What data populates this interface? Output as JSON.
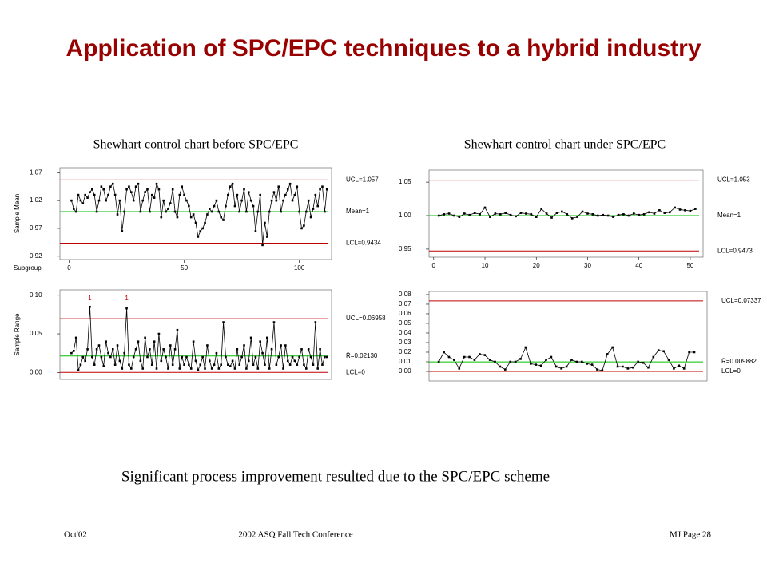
{
  "title": "Application of SPC/EPC techniques to a hybrid industry",
  "subtitles": [
    "Shewhart control chart before SPC/EPC",
    "Shewhart control chart under SPC/EPC"
  ],
  "caption": "Significant process improvement resulted due to the SPC/EPC scheme",
  "footer": {
    "left": "Oct'02",
    "center": "2002 ASQ Fall Tech Conference",
    "right": "MJ   Page 28"
  },
  "chart_data": [
    {
      "type": "line",
      "ylabel": "Sample Mean",
      "xlabel": "Subgroup",
      "x": [
        1,
        2,
        3,
        4,
        5,
        6,
        7,
        8,
        9,
        10,
        11,
        12,
        13,
        14,
        15,
        16,
        17,
        18,
        19,
        20,
        21,
        22,
        23,
        24,
        25,
        26,
        27,
        28,
        29,
        30,
        31,
        32,
        33,
        34,
        35,
        36,
        37,
        38,
        39,
        40,
        41,
        42,
        43,
        44,
        45,
        46,
        47,
        48,
        49,
        50,
        51,
        52,
        53,
        54,
        55,
        56,
        57,
        58,
        59,
        60,
        61,
        62,
        63,
        64,
        65,
        66,
        67,
        68,
        69,
        70,
        71,
        72,
        73,
        74,
        75,
        76,
        77,
        78,
        79,
        80,
        81,
        82,
        83,
        84,
        85,
        86,
        87,
        88,
        89,
        90,
        91,
        92,
        93,
        94,
        95,
        96,
        97,
        98,
        99,
        100,
        101,
        102,
        103,
        104,
        105,
        106,
        107,
        108,
        109,
        110,
        111,
        112
      ],
      "values": [
        1.02,
        1.005,
        1.0,
        1.03,
        1.02,
        1.015,
        1.03,
        1.025,
        1.035,
        1.04,
        1.03,
        1.0,
        1.02,
        1.045,
        1.04,
        1.02,
        1.03,
        1.045,
        1.05,
        1.03,
        0.995,
        1.02,
        0.965,
        1.0,
        1.04,
        1.045,
        1.035,
        1.02,
        1.045,
        1.05,
        1.0,
        1.02,
        1.035,
        1.04,
        1.0,
        1.03,
        1.025,
        1.05,
        1.04,
        0.99,
        1.02,
        1.0,
        1.005,
        1.015,
        1.04,
        1.0,
        0.99,
        1.03,
        1.045,
        1.03,
        1.02,
        1.01,
        0.99,
        0.995,
        0.98,
        0.955,
        0.965,
        0.97,
        0.98,
        0.995,
        1.005,
        1.0,
        1.01,
        1.02,
        1.0,
        0.99,
        0.985,
        1.01,
        1.03,
        1.045,
        1.05,
        1.01,
        1.03,
        1.0,
        1.02,
        1.04,
        1.0,
        1.035,
        1.02,
        1.01,
        0.965,
        1.0,
        1.03,
        0.94,
        0.98,
        0.955,
        1.0,
        1.02,
        1.035,
        1.02,
        1.045,
        1.0,
        1.02,
        1.03,
        1.04,
        1.05,
        1.02,
        1.03,
        1.045,
        1.0,
        0.97,
        0.975,
        1.0,
        1.02,
        0.99,
        1.005,
        1.03,
        1.01,
        1.04,
        1.045,
        1.0,
        1.04
      ],
      "xlim": [
        -4,
        114
      ],
      "xticks": [
        0,
        50,
        100
      ],
      "ylim": [
        0.914,
        1.079
      ],
      "yticks": [
        1.07,
        1.02,
        0.97,
        0.92
      ],
      "limits": [
        {
          "label": "UCL=1.057",
          "value": 1.057,
          "color": "#c00000"
        },
        {
          "label": "Mean=1",
          "value": 1,
          "color": "#00c000"
        },
        {
          "label": "LCL=0.9434",
          "value": 0.9434,
          "color": "#c00000"
        }
      ]
    },
    {
      "type": "line",
      "ylabel": "Sample Range",
      "x": [
        1,
        2,
        3,
        4,
        5,
        6,
        7,
        8,
        9,
        10,
        11,
        12,
        13,
        14,
        15,
        16,
        17,
        18,
        19,
        20,
        21,
        22,
        23,
        24,
        25,
        26,
        27,
        28,
        29,
        30,
        31,
        32,
        33,
        34,
        35,
        36,
        37,
        38,
        39,
        40,
        41,
        42,
        43,
        44,
        45,
        46,
        47,
        48,
        49,
        50,
        51,
        52,
        53,
        54,
        55,
        56,
        57,
        58,
        59,
        60,
        61,
        62,
        63,
        64,
        65,
        66,
        67,
        68,
        69,
        70,
        71,
        72,
        73,
        74,
        75,
        76,
        77,
        78,
        79,
        80,
        81,
        82,
        83,
        84,
        85,
        86,
        87,
        88,
        89,
        90,
        91,
        92,
        93,
        94,
        95,
        96,
        97,
        98,
        99,
        100,
        101,
        102,
        103,
        104,
        105,
        106,
        107,
        108,
        109,
        110,
        111,
        112
      ],
      "values": [
        0.025,
        0.028,
        0.045,
        0.003,
        0.01,
        0.02,
        0.015,
        0.03,
        0.085,
        0.02,
        0.01,
        0.03,
        0.035,
        0.02,
        0.008,
        0.04,
        0.025,
        0.02,
        0.03,
        0.01,
        0.035,
        0.015,
        0.005,
        0.025,
        0.083,
        0.01,
        0.005,
        0.02,
        0.03,
        0.04,
        0.015,
        0.005,
        0.045,
        0.02,
        0.03,
        0.01,
        0.04,
        0.005,
        0.05,
        0.015,
        0.03,
        0.02,
        0.005,
        0.035,
        0.01,
        0.03,
        0.055,
        0.005,
        0.02,
        0.01,
        0.02,
        0.01,
        0.005,
        0.04,
        0.015,
        0.003,
        0.01,
        0.02,
        0.005,
        0.035,
        0.015,
        0.005,
        0.01,
        0.025,
        0.005,
        0.01,
        0.065,
        0.02,
        0.01,
        0.008,
        0.015,
        0.005,
        0.03,
        0.01,
        0.02,
        0.035,
        0.005,
        0.015,
        0.045,
        0.01,
        0.02,
        0.005,
        0.04,
        0.025,
        0.01,
        0.045,
        0.005,
        0.03,
        0.065,
        0.01,
        0.02,
        0.035,
        0.005,
        0.035,
        0.015,
        0.01,
        0.02,
        0.015,
        0.01,
        0.02,
        0.03,
        0.01,
        0.005,
        0.03,
        0.02,
        0.01,
        0.065,
        0.005,
        0.03,
        0.01,
        0.02,
        0.02
      ],
      "xlim": [
        -4,
        114
      ],
      "ylim": [
        -0.009,
        0.107
      ],
      "yticks": [
        {
          "value": 0.1,
          "label": "0.10"
        },
        0.05,
        {
          "value": 0,
          "label": "0.00"
        }
      ],
      "limits": [
        {
          "label": "UCL=0.06958",
          "value": 0.06958,
          "color": "#c00000"
        },
        {
          "label": "R̄=0.02130",
          "value": 0.0213,
          "color": "#00c000"
        },
        {
          "label": "LCL=0",
          "value": 0,
          "color": "#c00000"
        }
      ],
      "annotations": [
        {
          "text": "1",
          "x": 9
        },
        {
          "text": "1",
          "x": 25
        }
      ]
    },
    {
      "type": "line",
      "x": [
        1,
        2,
        3,
        4,
        5,
        6,
        7,
        8,
        9,
        10,
        11,
        12,
        13,
        14,
        15,
        16,
        17,
        18,
        19,
        20,
        21,
        22,
        23,
        24,
        25,
        26,
        27,
        28,
        29,
        30,
        31,
        32,
        33,
        34,
        35,
        36,
        37,
        38,
        39,
        40,
        41,
        42,
        43,
        44,
        45,
        46,
        47,
        48,
        49,
        50,
        51
      ],
      "values": [
        1.0,
        1.002,
        1.003,
        1.0,
        0.998,
        1.003,
        1.001,
        1.004,
        1.002,
        1.012,
        0.998,
        1.003,
        1.002,
        1.004,
        1.001,
        0.999,
        1.004,
        1.003,
        1.002,
        0.998,
        1.01,
        1.003,
        0.997,
        1.004,
        1.006,
        1.002,
        0.996,
        0.998,
        1.006,
        1.003,
        1.002,
        1.0,
        1.001,
        1.0,
        0.998,
        1.001,
        1.002,
        1.0,
        1.003,
        1.001,
        1.002,
        1.005,
        1.003,
        1.008,
        1.004,
        1.005,
        1.012,
        1.009,
        1.008,
        1.007,
        1.01
      ],
      "xlim": [
        -0.9,
        52.5
      ],
      "xticks": [
        0,
        10,
        20,
        30,
        40,
        50
      ],
      "ylim": [
        0.938,
        1.068
      ],
      "yticks": [
        1.05,
        {
          "value": 1,
          "label": "1.00"
        },
        0.95
      ],
      "limits": [
        {
          "label": "UCL=1.053",
          "value": 1.053,
          "color": "#c00000"
        },
        {
          "label": "Mean=1",
          "value": 1,
          "color": "#00c000"
        },
        {
          "label": "LCL=0.9473",
          "value": 0.9473,
          "color": "#c00000"
        }
      ]
    },
    {
      "type": "line",
      "x": [
        1,
        2,
        3,
        4,
        5,
        6,
        7,
        8,
        9,
        10,
        11,
        12,
        13,
        14,
        15,
        16,
        17,
        18,
        19,
        20,
        21,
        22,
        23,
        24,
        25,
        26,
        27,
        28,
        29,
        30,
        31,
        32,
        33,
        34,
        35,
        36,
        37,
        38,
        39,
        40,
        41,
        42,
        43,
        44,
        45,
        46,
        47,
        48,
        49,
        50,
        51
      ],
      "values": [
        0.01,
        0.02,
        0.015,
        0.012,
        0.003,
        0.015,
        0.015,
        0.012,
        0.018,
        0.017,
        0.012,
        0.01,
        0.005,
        0.002,
        0.01,
        0.01,
        0.013,
        0.025,
        0.008,
        0.007,
        0.006,
        0.012,
        0.015,
        0.005,
        0.003,
        0.005,
        0.012,
        0.01,
        0.01,
        0.008,
        0.007,
        0.002,
        0.001,
        0.018,
        0.025,
        0.005,
        0.005,
        0.003,
        0.004,
        0.01,
        0.009,
        0.004,
        0.015,
        0.022,
        0.021,
        0.012,
        0.003,
        0.006,
        0.003,
        0.02,
        0.02
      ],
      "xlim": [
        -0.9,
        53.5
      ],
      "ylim": [
        -0.01,
        0.0833
      ],
      "yticks": [
        0.08,
        0.07,
        0.06,
        0.05,
        0.04,
        0.03,
        0.02,
        0.01,
        {
          "value": 0,
          "label": "0.00"
        }
      ],
      "limits": [
        {
          "label": "UCL=0.07337",
          "value": 0.07337,
          "color": "#c00000"
        },
        {
          "label": "R̄=0.009882",
          "value": 0.009882,
          "color": "#00c000"
        },
        {
          "label": "LCL=0",
          "value": 0,
          "color": "#c00000"
        }
      ]
    }
  ]
}
